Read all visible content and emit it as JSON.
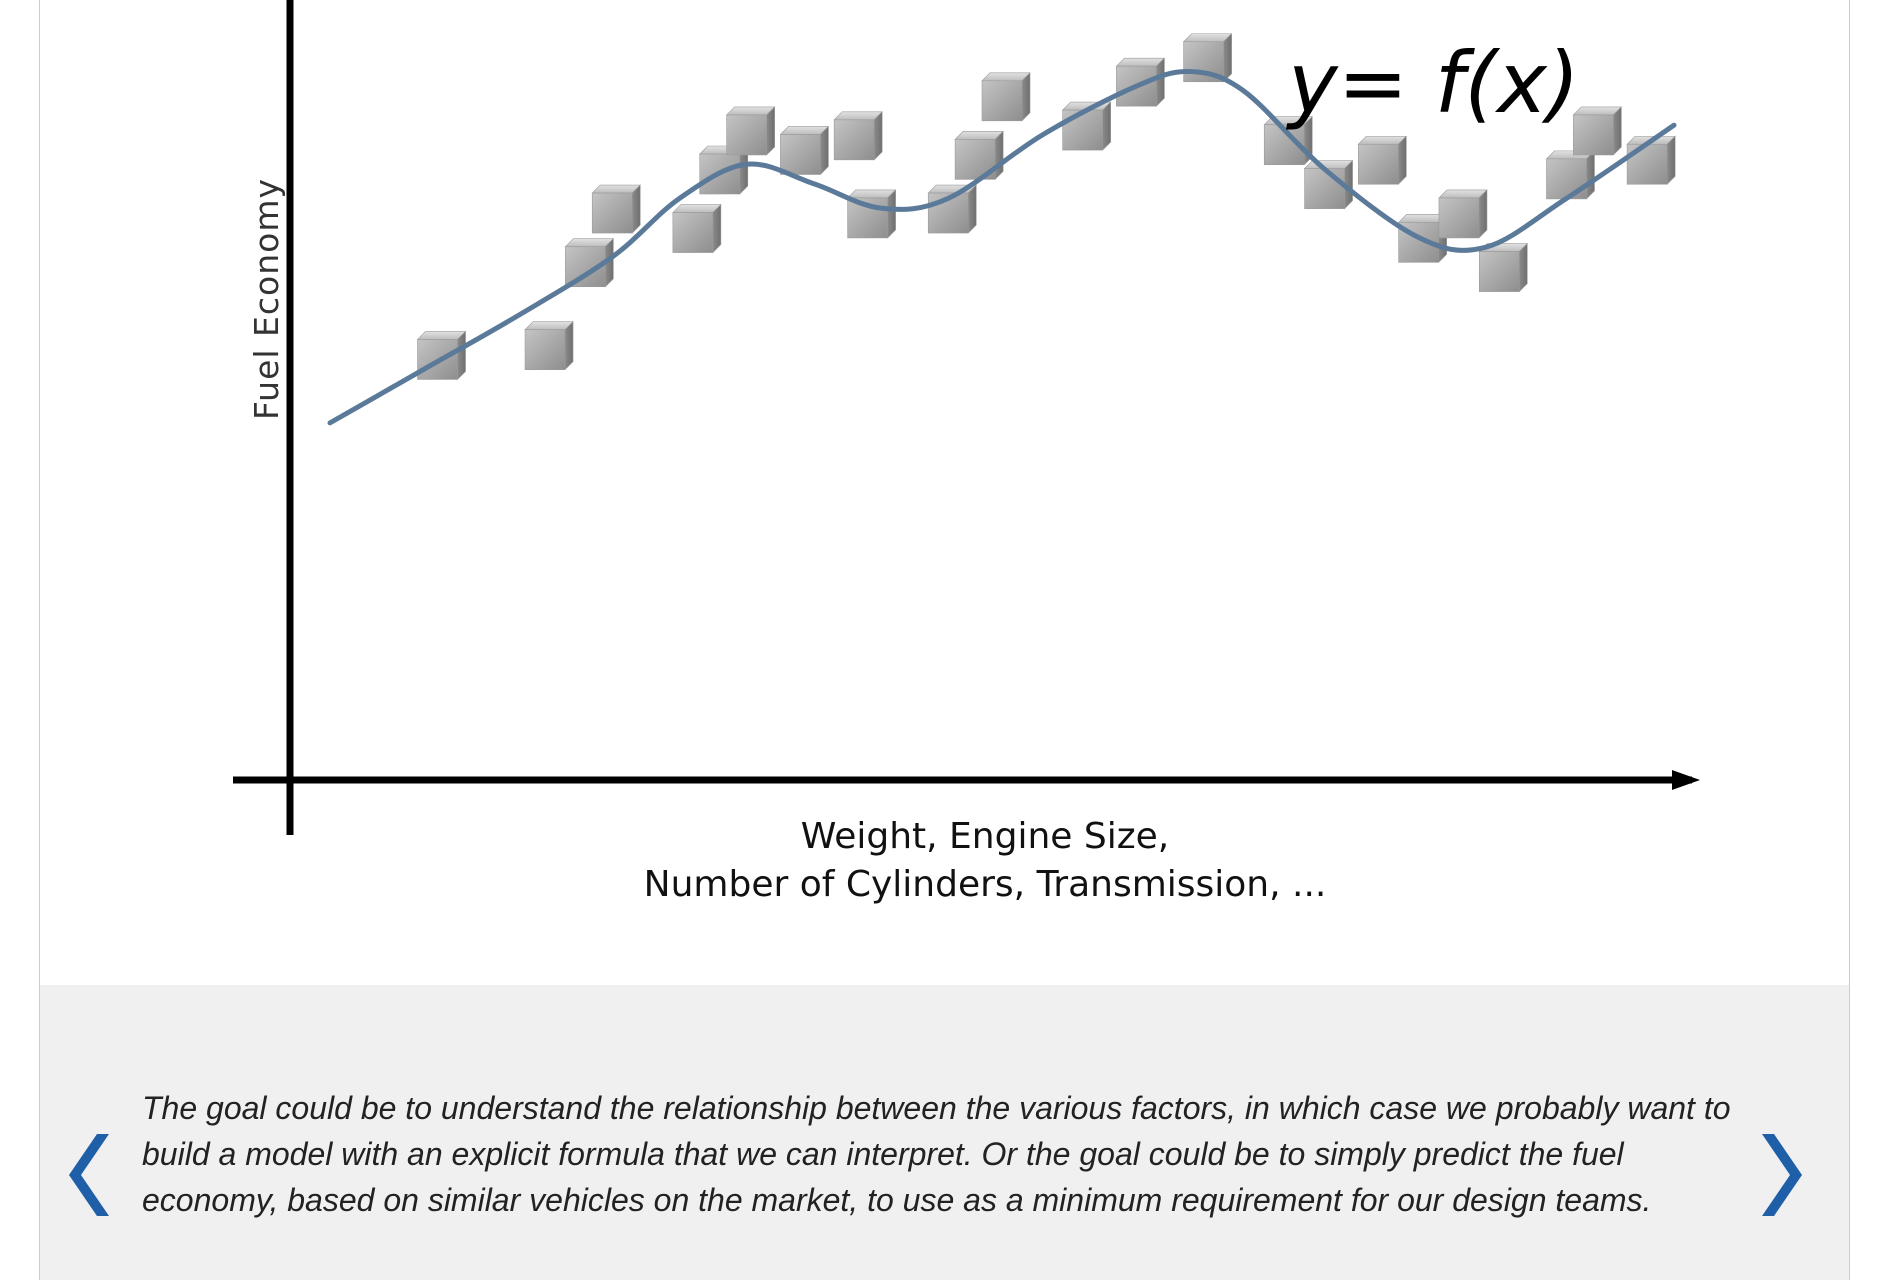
{
  "chart_data": {
    "type": "scatter",
    "xlabel_lines": [
      "Weight, Engine Size,",
      "Number of Cylinders, Transmission, ..."
    ],
    "ylabel": "Fuel Economy",
    "formula": "y= f(x)",
    "x_range": [
      0,
      1
    ],
    "y_range": [
      0,
      1
    ],
    "points": [
      {
        "x": 0.08,
        "y": 0.37
      },
      {
        "x": 0.16,
        "y": 0.39
      },
      {
        "x": 0.19,
        "y": 0.56
      },
      {
        "x": 0.21,
        "y": 0.67
      },
      {
        "x": 0.27,
        "y": 0.63
      },
      {
        "x": 0.29,
        "y": 0.75
      },
      {
        "x": 0.31,
        "y": 0.83
      },
      {
        "x": 0.35,
        "y": 0.79
      },
      {
        "x": 0.39,
        "y": 0.82
      },
      {
        "x": 0.4,
        "y": 0.66
      },
      {
        "x": 0.46,
        "y": 0.67
      },
      {
        "x": 0.48,
        "y": 0.78
      },
      {
        "x": 0.5,
        "y": 0.9
      },
      {
        "x": 0.56,
        "y": 0.84
      },
      {
        "x": 0.6,
        "y": 0.93
      },
      {
        "x": 0.65,
        "y": 0.98
      },
      {
        "x": 0.71,
        "y": 0.81
      },
      {
        "x": 0.74,
        "y": 0.72
      },
      {
        "x": 0.78,
        "y": 0.77
      },
      {
        "x": 0.81,
        "y": 0.61
      },
      {
        "x": 0.84,
        "y": 0.66
      },
      {
        "x": 0.87,
        "y": 0.55
      },
      {
        "x": 0.92,
        "y": 0.74
      },
      {
        "x": 0.94,
        "y": 0.83
      },
      {
        "x": 0.98,
        "y": 0.77
      }
    ],
    "curve": [
      {
        "x": 0.0,
        "y": 0.24
      },
      {
        "x": 0.07,
        "y": 0.35
      },
      {
        "x": 0.14,
        "y": 0.46
      },
      {
        "x": 0.21,
        "y": 0.58
      },
      {
        "x": 0.26,
        "y": 0.7
      },
      {
        "x": 0.31,
        "y": 0.77
      },
      {
        "x": 0.36,
        "y": 0.73
      },
      {
        "x": 0.41,
        "y": 0.68
      },
      {
        "x": 0.46,
        "y": 0.7
      },
      {
        "x": 0.53,
        "y": 0.83
      },
      {
        "x": 0.6,
        "y": 0.93
      },
      {
        "x": 0.64,
        "y": 0.96
      },
      {
        "x": 0.68,
        "y": 0.92
      },
      {
        "x": 0.74,
        "y": 0.76
      },
      {
        "x": 0.81,
        "y": 0.62
      },
      {
        "x": 0.86,
        "y": 0.6
      },
      {
        "x": 0.92,
        "y": 0.7
      },
      {
        "x": 1.0,
        "y": 0.85
      }
    ],
    "colors": {
      "curve": "#5b7a99",
      "axis": "#000000",
      "cube": "#a6a6a6"
    }
  },
  "caption": {
    "text": "The goal could be to understand the relationship between the various factors, in which case we probably want to build a model with an explicit formula that we can interpret. Or the goal could be to simply predict the fuel economy, based on similar vehicles on the market, to use as a minimum requirement for our design teams."
  },
  "navigation": {
    "prev_icon": "chevron-left-icon",
    "next_icon": "chevron-right-icon",
    "color": "#1f5fa8"
  }
}
